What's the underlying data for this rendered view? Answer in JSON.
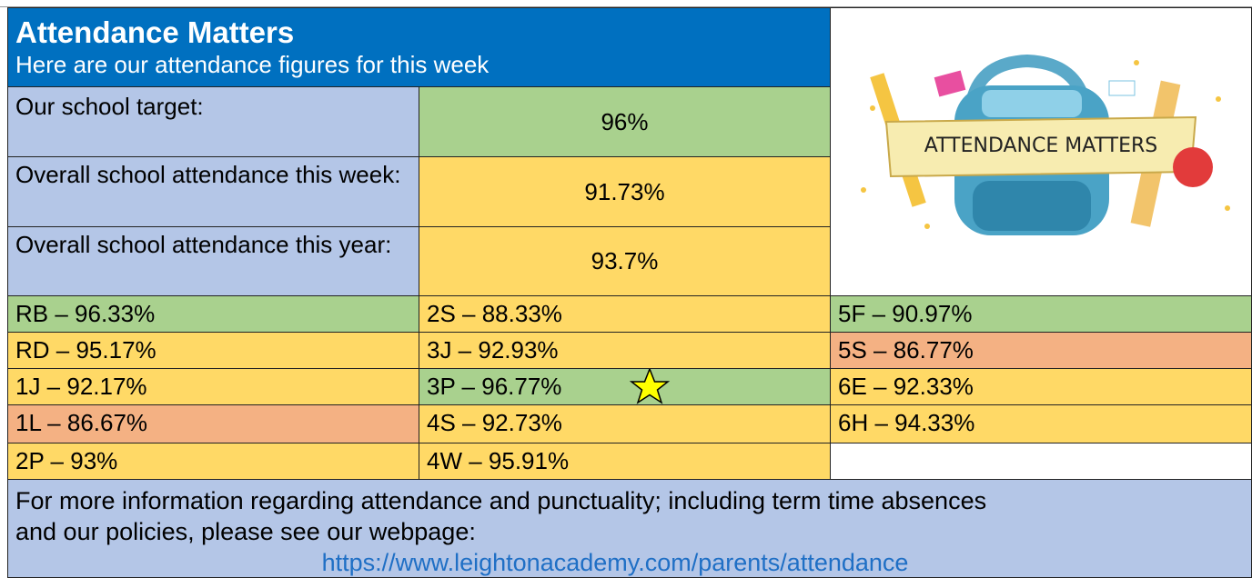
{
  "header": {
    "title": "Attendance Matters",
    "subtitle": "Here are our attendance figures for this week"
  },
  "summary": [
    {
      "label": "Our school target:",
      "value": "96%"
    },
    {
      "label": "Overall school attendance this week:",
      "value": "91.73%"
    },
    {
      "label": "Overall school attendance this year:",
      "value": "93.7%"
    }
  ],
  "image": {
    "label": "ATTENDANCE MATTERS"
  },
  "classes": [
    [
      "RB – 96.33%",
      "2S – 88.33%",
      "5F – 90.97%"
    ],
    [
      "RD – 95.17%",
      "3J – 92.93%",
      "5S – 86.77%"
    ],
    [
      "1J – 92.17%",
      "3P – 96.77%",
      "6E – 92.33%"
    ],
    [
      "1L – 86.67%",
      "4S – 92.73%",
      "6H – 94.33%"
    ],
    [
      "2P – 93%",
      "4W – 95.91%"
    ]
  ],
  "footer": {
    "lines": [
      "For more information regarding attendance and punctuality; including term time absences",
      "and our policies, please see our webpage:"
    ],
    "link": "https://www.leightonacademy.com/parents/attendance"
  }
}
